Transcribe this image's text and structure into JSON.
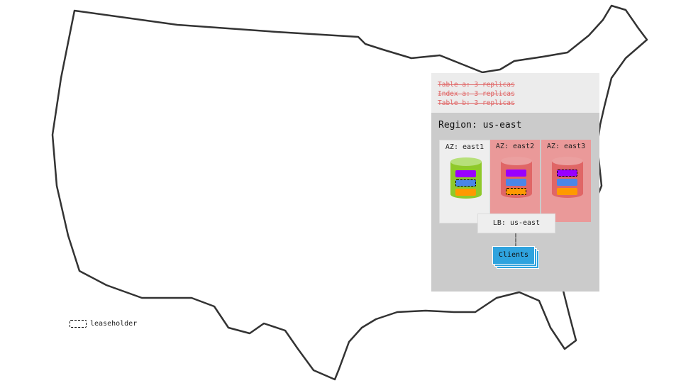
{
  "constraints": [
    "Table a: 3 replicas",
    "Index a: 3 replicas",
    "Table b: 3 replicas"
  ],
  "region": {
    "label": "Region: us-east"
  },
  "azs": [
    {
      "label": "AZ: east1",
      "status": "ok",
      "leaseholder_replica": "blue"
    },
    {
      "label": "AZ: east2",
      "status": "failed",
      "leaseholder_replica": "orange"
    },
    {
      "label": "AZ: east3",
      "status": "failed",
      "leaseholder_replica": "purple"
    }
  ],
  "replica_colors": {
    "purple": "#9900ff",
    "blue": "#4a86e8",
    "orange": "#ff9900"
  },
  "colors": {
    "healthy_az": "#eeeeee",
    "failed_az": "#ea9999",
    "healthy_node": "#8fc92a",
    "failed_node": "#e06666",
    "clients": "#2fa3de"
  },
  "load_balancer": {
    "label": "LB: us-east"
  },
  "clients": {
    "label": "Clients"
  },
  "legend": {
    "label": "leaseholder"
  }
}
